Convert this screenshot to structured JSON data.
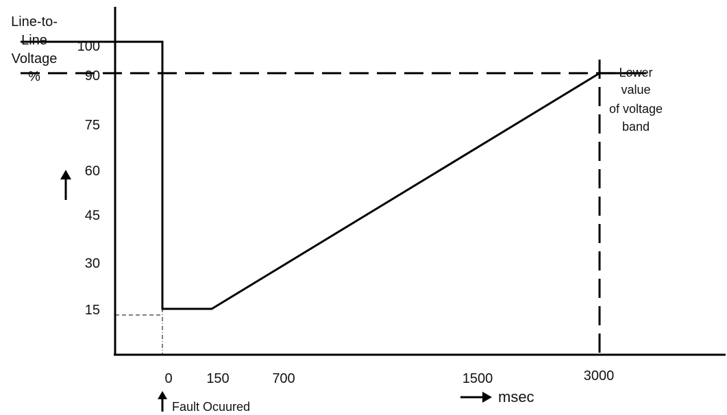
{
  "chart_data": {
    "type": "line",
    "ylabel_lines": [
      "Line-to-",
      "Line",
      "Voltage",
      "%"
    ],
    "xlabel": "msec",
    "annotation_fault": "Fault Ocuured",
    "annotation_band_lines": [
      "Lower",
      "value",
      "of voltage",
      "band"
    ],
    "yticks": [
      "100",
      "90",
      "75",
      "60",
      "45",
      "30",
      "15"
    ],
    "xticks": [
      "0",
      "150",
      "700",
      "1500",
      "3000"
    ],
    "series": [
      {
        "style": "solid",
        "points": [
          [
            -0.3,
            100
          ],
          [
            0,
            100
          ],
          [
            0,
            15
          ],
          [
            1,
            15
          ],
          [
            5,
            90
          ],
          [
            6.2,
            90
          ]
        ]
      },
      {
        "style": "dashed",
        "points": [
          [
            -0.3,
            90
          ],
          [
            6.2,
            90
          ]
        ]
      }
    ],
    "threshold_time": "3000",
    "fault_level": 15
  }
}
